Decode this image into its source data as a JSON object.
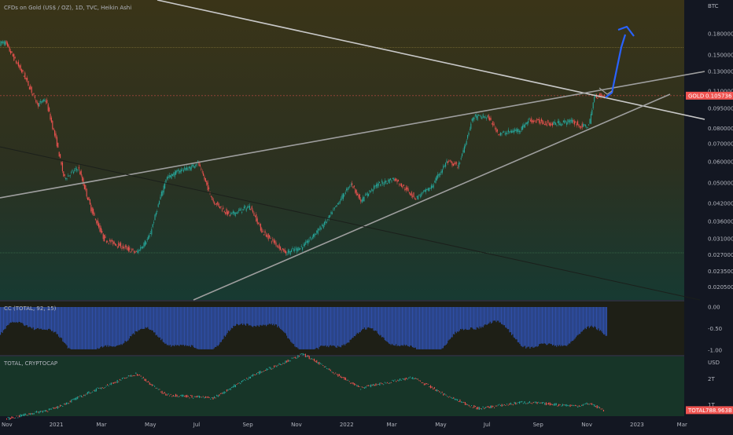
{
  "colors": {
    "background": "#131722",
    "up": "#26a69a",
    "down": "#ef5350",
    "trendline": "#c9c9c9",
    "arrow": "#2962ff",
    "cc_fill": "#2f4fa8",
    "text": "#b2b5be",
    "tag_bg": "#ef5350"
  },
  "main_pane": {
    "title": "CFDs on Gold (US$ / OZ), 1D, TVC, Heikin Ashi",
    "currency": "BTC",
    "price_tag": {
      "symbol": "GOLD",
      "value": "0.105736"
    }
  },
  "cc_pane": {
    "title": "CC (TOTAL, 92, 15)"
  },
  "total_pane": {
    "title": "TOTAL, CRYPTOCAP",
    "currency": "USD",
    "price_tag": {
      "symbol": "TOTAL",
      "value": "788.963B"
    }
  },
  "chart_data": [
    {
      "type": "candlestick",
      "title": "CFDs on Gold (US$ / OZ), 1D, TVC, Heikin Ashi",
      "scale": "log",
      "y_ticks": [
        "0.180000",
        "0.150000",
        "0.130000",
        "0.110000",
        "0.095000",
        "0.080000",
        "0.070000",
        "0.060000",
        "0.050000",
        "0.042000",
        "0.036000",
        "0.031000",
        "0.027000",
        "0.023500",
        "0.020500"
      ],
      "x_ticks": [
        "Nov",
        "2021",
        "Mar",
        "May",
        "Jul",
        "Sep",
        "Nov",
        "2022",
        "Mar",
        "May",
        "Jul",
        "Sep",
        "Nov",
        "2023",
        "Mar"
      ],
      "last_value": 0.105736,
      "path": [
        {
          "date": "2020-11-01",
          "value": 0.166
        },
        {
          "date": "2020-11-25",
          "value": 0.125
        },
        {
          "date": "2020-12-12",
          "value": 0.098
        },
        {
          "date": "2020-12-22",
          "value": 0.102
        },
        {
          "date": "2021-01-05",
          "value": 0.07
        },
        {
          "date": "2021-01-14",
          "value": 0.052
        },
        {
          "date": "2021-02-01",
          "value": 0.057
        },
        {
          "date": "2021-02-17",
          "value": 0.04
        },
        {
          "date": "2021-03-05",
          "value": 0.031
        },
        {
          "date": "2021-04-15",
          "value": 0.0275
        },
        {
          "date": "2021-05-01",
          "value": 0.0315
        },
        {
          "date": "2021-05-22",
          "value": 0.052
        },
        {
          "date": "2021-06-10",
          "value": 0.056
        },
        {
          "date": "2021-06-22",
          "value": 0.057
        },
        {
          "date": "2021-07-01",
          "value": 0.06
        },
        {
          "date": "2021-07-20",
          "value": 0.043
        },
        {
          "date": "2021-08-10",
          "value": 0.038
        },
        {
          "date": "2021-09-05",
          "value": 0.041
        },
        {
          "date": "2021-09-20",
          "value": 0.033
        },
        {
          "date": "2021-10-20",
          "value": 0.0275
        },
        {
          "date": "2021-11-10",
          "value": 0.029
        },
        {
          "date": "2021-12-10",
          "value": 0.036
        },
        {
          "date": "2021-12-22",
          "value": 0.041
        },
        {
          "date": "2022-01-10",
          "value": 0.05
        },
        {
          "date": "2022-01-22",
          "value": 0.043
        },
        {
          "date": "2022-02-10",
          "value": 0.049
        },
        {
          "date": "2022-03-05",
          "value": 0.052
        },
        {
          "date": "2022-04-01",
          "value": 0.044
        },
        {
          "date": "2022-04-20",
          "value": 0.048
        },
        {
          "date": "2022-05-10",
          "value": 0.06
        },
        {
          "date": "2022-05-25",
          "value": 0.058
        },
        {
          "date": "2022-06-12",
          "value": 0.088
        },
        {
          "date": "2022-07-01",
          "value": 0.088
        },
        {
          "date": "2022-07-15",
          "value": 0.076
        },
        {
          "date": "2022-08-10",
          "value": 0.079
        },
        {
          "date": "2022-08-22",
          "value": 0.086
        },
        {
          "date": "2022-09-20",
          "value": 0.083
        },
        {
          "date": "2022-10-15",
          "value": 0.085
        },
        {
          "date": "2022-10-27",
          "value": 0.081
        },
        {
          "date": "2022-11-05",
          "value": 0.082
        },
        {
          "date": "2022-11-12",
          "value": 0.106
        },
        {
          "date": "2022-11-23",
          "value": 0.105736
        }
      ]
    },
    {
      "type": "area",
      "title": "CC (TOTAL, 92, 15)",
      "y_ticks": [
        "0.00",
        "-0.50",
        "-1.00"
      ],
      "ylim": [
        -1.0,
        0.0
      ]
    },
    {
      "type": "line",
      "title": "TOTAL, CRYPTOCAP",
      "y_ticks": [
        "2T",
        "1T"
      ],
      "last_value": "788.963B"
    }
  ]
}
